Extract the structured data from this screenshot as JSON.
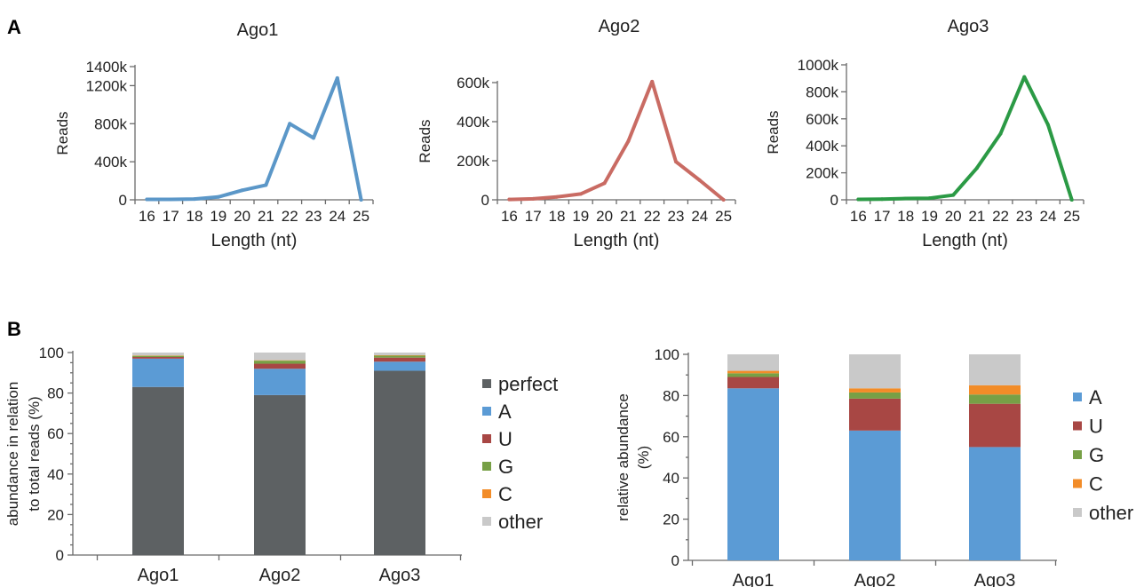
{
  "panel_labels": [
    "A",
    "B"
  ],
  "chart_data": [
    {
      "type": "line",
      "title": "Ago1",
      "xlabel": "Length (nt)",
      "ylabel": "Reads",
      "x": [
        16,
        17,
        18,
        19,
        20,
        21,
        22,
        23,
        24,
        25
      ],
      "series": [
        {
          "values": [
            5000,
            5000,
            8000,
            30000,
            100000,
            155000,
            800000,
            650000,
            1280000,
            0
          ]
        }
      ],
      "yticks": [
        "0",
        "400k",
        "800k",
        "1200k",
        "1400k"
      ],
      "ytick_values": [
        0,
        400000,
        800000,
        1200000,
        1400000
      ],
      "ylim": [
        0,
        1400000
      ],
      "color": "#5b97c8"
    },
    {
      "type": "line",
      "title": "Ago2",
      "xlabel": "Length (nt)",
      "ylabel": "Reads",
      "x": [
        16,
        17,
        18,
        19,
        20,
        21,
        22,
        23,
        24,
        25
      ],
      "series": [
        {
          "values": [
            2000,
            5000,
            15000,
            30000,
            85000,
            300000,
            605000,
            195000,
            100000,
            0
          ]
        }
      ],
      "yticks": [
        "0",
        "200k",
        "400k",
        "600k"
      ],
      "ytick_values": [
        0,
        200000,
        400000,
        600000
      ],
      "ylim": [
        0,
        600000
      ],
      "color": "#c96b63"
    },
    {
      "type": "line",
      "title": "Ago3",
      "xlabel": "Length (nt)",
      "ylabel": "Reads",
      "x": [
        16,
        17,
        18,
        19,
        20,
        21,
        22,
        23,
        24,
        25
      ],
      "series": [
        {
          "values": [
            3000,
            5000,
            10000,
            12000,
            35000,
            235000,
            490000,
            910000,
            555000,
            0
          ]
        }
      ],
      "yticks": [
        "0",
        "200k",
        "400k",
        "600k",
        "800k",
        "1000k"
      ],
      "ytick_values": [
        0,
        200000,
        400000,
        600000,
        800000,
        1000000
      ],
      "ylim": [
        0,
        1000000
      ],
      "color": "#2b9a45"
    },
    {
      "type": "bar",
      "stacked": true,
      "categories": [
        "Ago1",
        "Ago2",
        "Ago3"
      ],
      "ylabel": [
        "abundance in relation",
        "to total reads (%)"
      ],
      "ylim": [
        0,
        100
      ],
      "yticks": [
        "0",
        "20",
        "40",
        "60",
        "80",
        "100"
      ],
      "series": [
        {
          "name": "perfect",
          "color": "#5d6163",
          "values": [
            83,
            79,
            91
          ]
        },
        {
          "name": "A",
          "color": "#5b9bd5",
          "values": [
            14,
            13,
            4.5
          ]
        },
        {
          "name": "U",
          "color": "#a84744",
          "values": [
            0.8,
            2.5,
            2
          ]
        },
        {
          "name": "G",
          "color": "#77a046",
          "values": [
            0.6,
            1.5,
            1
          ]
        },
        {
          "name": "C",
          "color": "#f28c28",
          "values": [
            0.2,
            0.2,
            0.2
          ]
        },
        {
          "name": "other",
          "color": "#c9c9c9",
          "values": [
            1.4,
            3.8,
            1.3
          ]
        }
      ]
    },
    {
      "type": "bar",
      "stacked": true,
      "categories": [
        "Ago1",
        "Ago2",
        "Ago3"
      ],
      "ylabel": [
        "relative abundance",
        "(%)"
      ],
      "ylim": [
        0,
        100
      ],
      "yticks": [
        "0",
        "20",
        "40",
        "60",
        "80",
        "100"
      ],
      "series": [
        {
          "name": "A",
          "color": "#5b9bd5",
          "values": [
            83.5,
            63,
            55
          ]
        },
        {
          "name": "U",
          "color": "#a84744",
          "values": [
            5.5,
            15.5,
            21
          ]
        },
        {
          "name": "G",
          "color": "#77a046",
          "values": [
            1.8,
            3,
            4.5
          ]
        },
        {
          "name": "C",
          "color": "#f28c28",
          "values": [
            1.2,
            2,
            4.5
          ]
        },
        {
          "name": "other",
          "color": "#c9c9c9",
          "values": [
            8,
            16.5,
            15
          ]
        }
      ]
    }
  ]
}
